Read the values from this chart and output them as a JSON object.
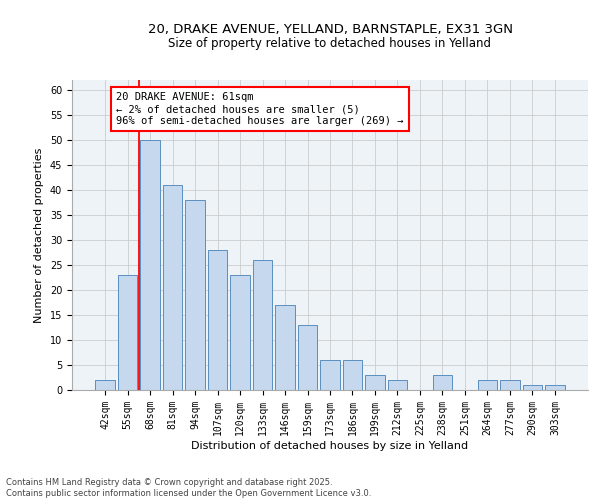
{
  "title_line1": "20, DRAKE AVENUE, YELLAND, BARNSTAPLE, EX31 3GN",
  "title_line2": "Size of property relative to detached houses in Yelland",
  "xlabel": "Distribution of detached houses by size in Yelland",
  "ylabel": "Number of detached properties",
  "categories": [
    "42sqm",
    "55sqm",
    "68sqm",
    "81sqm",
    "94sqm",
    "107sqm",
    "120sqm",
    "133sqm",
    "146sqm",
    "159sqm",
    "173sqm",
    "186sqm",
    "199sqm",
    "212sqm",
    "225sqm",
    "238sqm",
    "251sqm",
    "264sqm",
    "277sqm",
    "290sqm",
    "303sqm"
  ],
  "values": [
    2,
    23,
    50,
    41,
    38,
    28,
    23,
    26,
    17,
    13,
    6,
    6,
    3,
    2,
    0,
    3,
    0,
    2,
    2,
    1,
    1
  ],
  "bar_color": "#c5d8ed",
  "bar_edge_color": "#5a8fc0",
  "red_line_x": 1.5,
  "annotation_text": "20 DRAKE AVENUE: 61sqm\n← 2% of detached houses are smaller (5)\n96% of semi-detached houses are larger (269) →",
  "annotation_box_color": "white",
  "annotation_box_edge_color": "red",
  "grid_color": "#cccccc",
  "background_color": "#eef3f8",
  "ylim": [
    0,
    62
  ],
  "yticks": [
    0,
    5,
    10,
    15,
    20,
    25,
    30,
    35,
    40,
    45,
    50,
    55,
    60
  ],
  "footnote": "Contains HM Land Registry data © Crown copyright and database right 2025.\nContains public sector information licensed under the Open Government Licence v3.0.",
  "title_fontsize": 9.5,
  "subtitle_fontsize": 8.5,
  "label_fontsize": 8,
  "tick_fontsize": 7,
  "footnote_fontsize": 6,
  "annot_fontsize": 7.5
}
